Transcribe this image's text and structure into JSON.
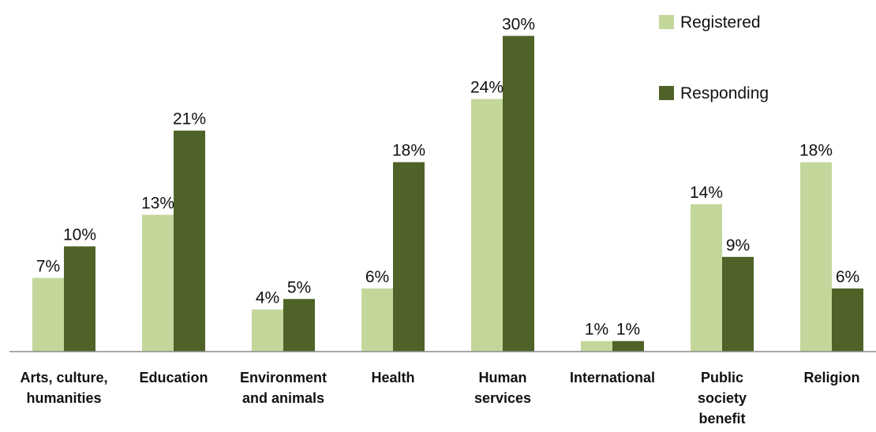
{
  "chart_data": {
    "type": "bar",
    "categories": [
      [
        "Arts,  culture,",
        "humanities"
      ],
      [
        "Education"
      ],
      [
        "Environment",
        "and animals"
      ],
      [
        "Health"
      ],
      [
        "Human",
        "services"
      ],
      [
        "International"
      ],
      [
        "Public",
        "society",
        "benefit"
      ],
      [
        "Religion"
      ]
    ],
    "series": [
      {
        "name": "Registered",
        "color": "#c4d79b",
        "values": [
          7,
          13,
          4,
          6,
          24,
          1,
          14,
          18
        ],
        "labels": [
          "7%",
          "13%",
          "4%",
          "6%",
          "24%",
          "1%",
          "14%",
          "18%"
        ]
      },
      {
        "name": "Responding",
        "color": "#4f6228",
        "values": [
          10,
          21,
          5,
          18,
          30,
          1,
          9,
          6
        ],
        "labels": [
          "10%",
          "21%",
          "5%",
          "18%",
          "30%",
          "1%",
          "9%",
          "6%"
        ]
      }
    ],
    "ylim": [
      0,
      30
    ],
    "grid": false,
    "legend_position": "top-right"
  }
}
